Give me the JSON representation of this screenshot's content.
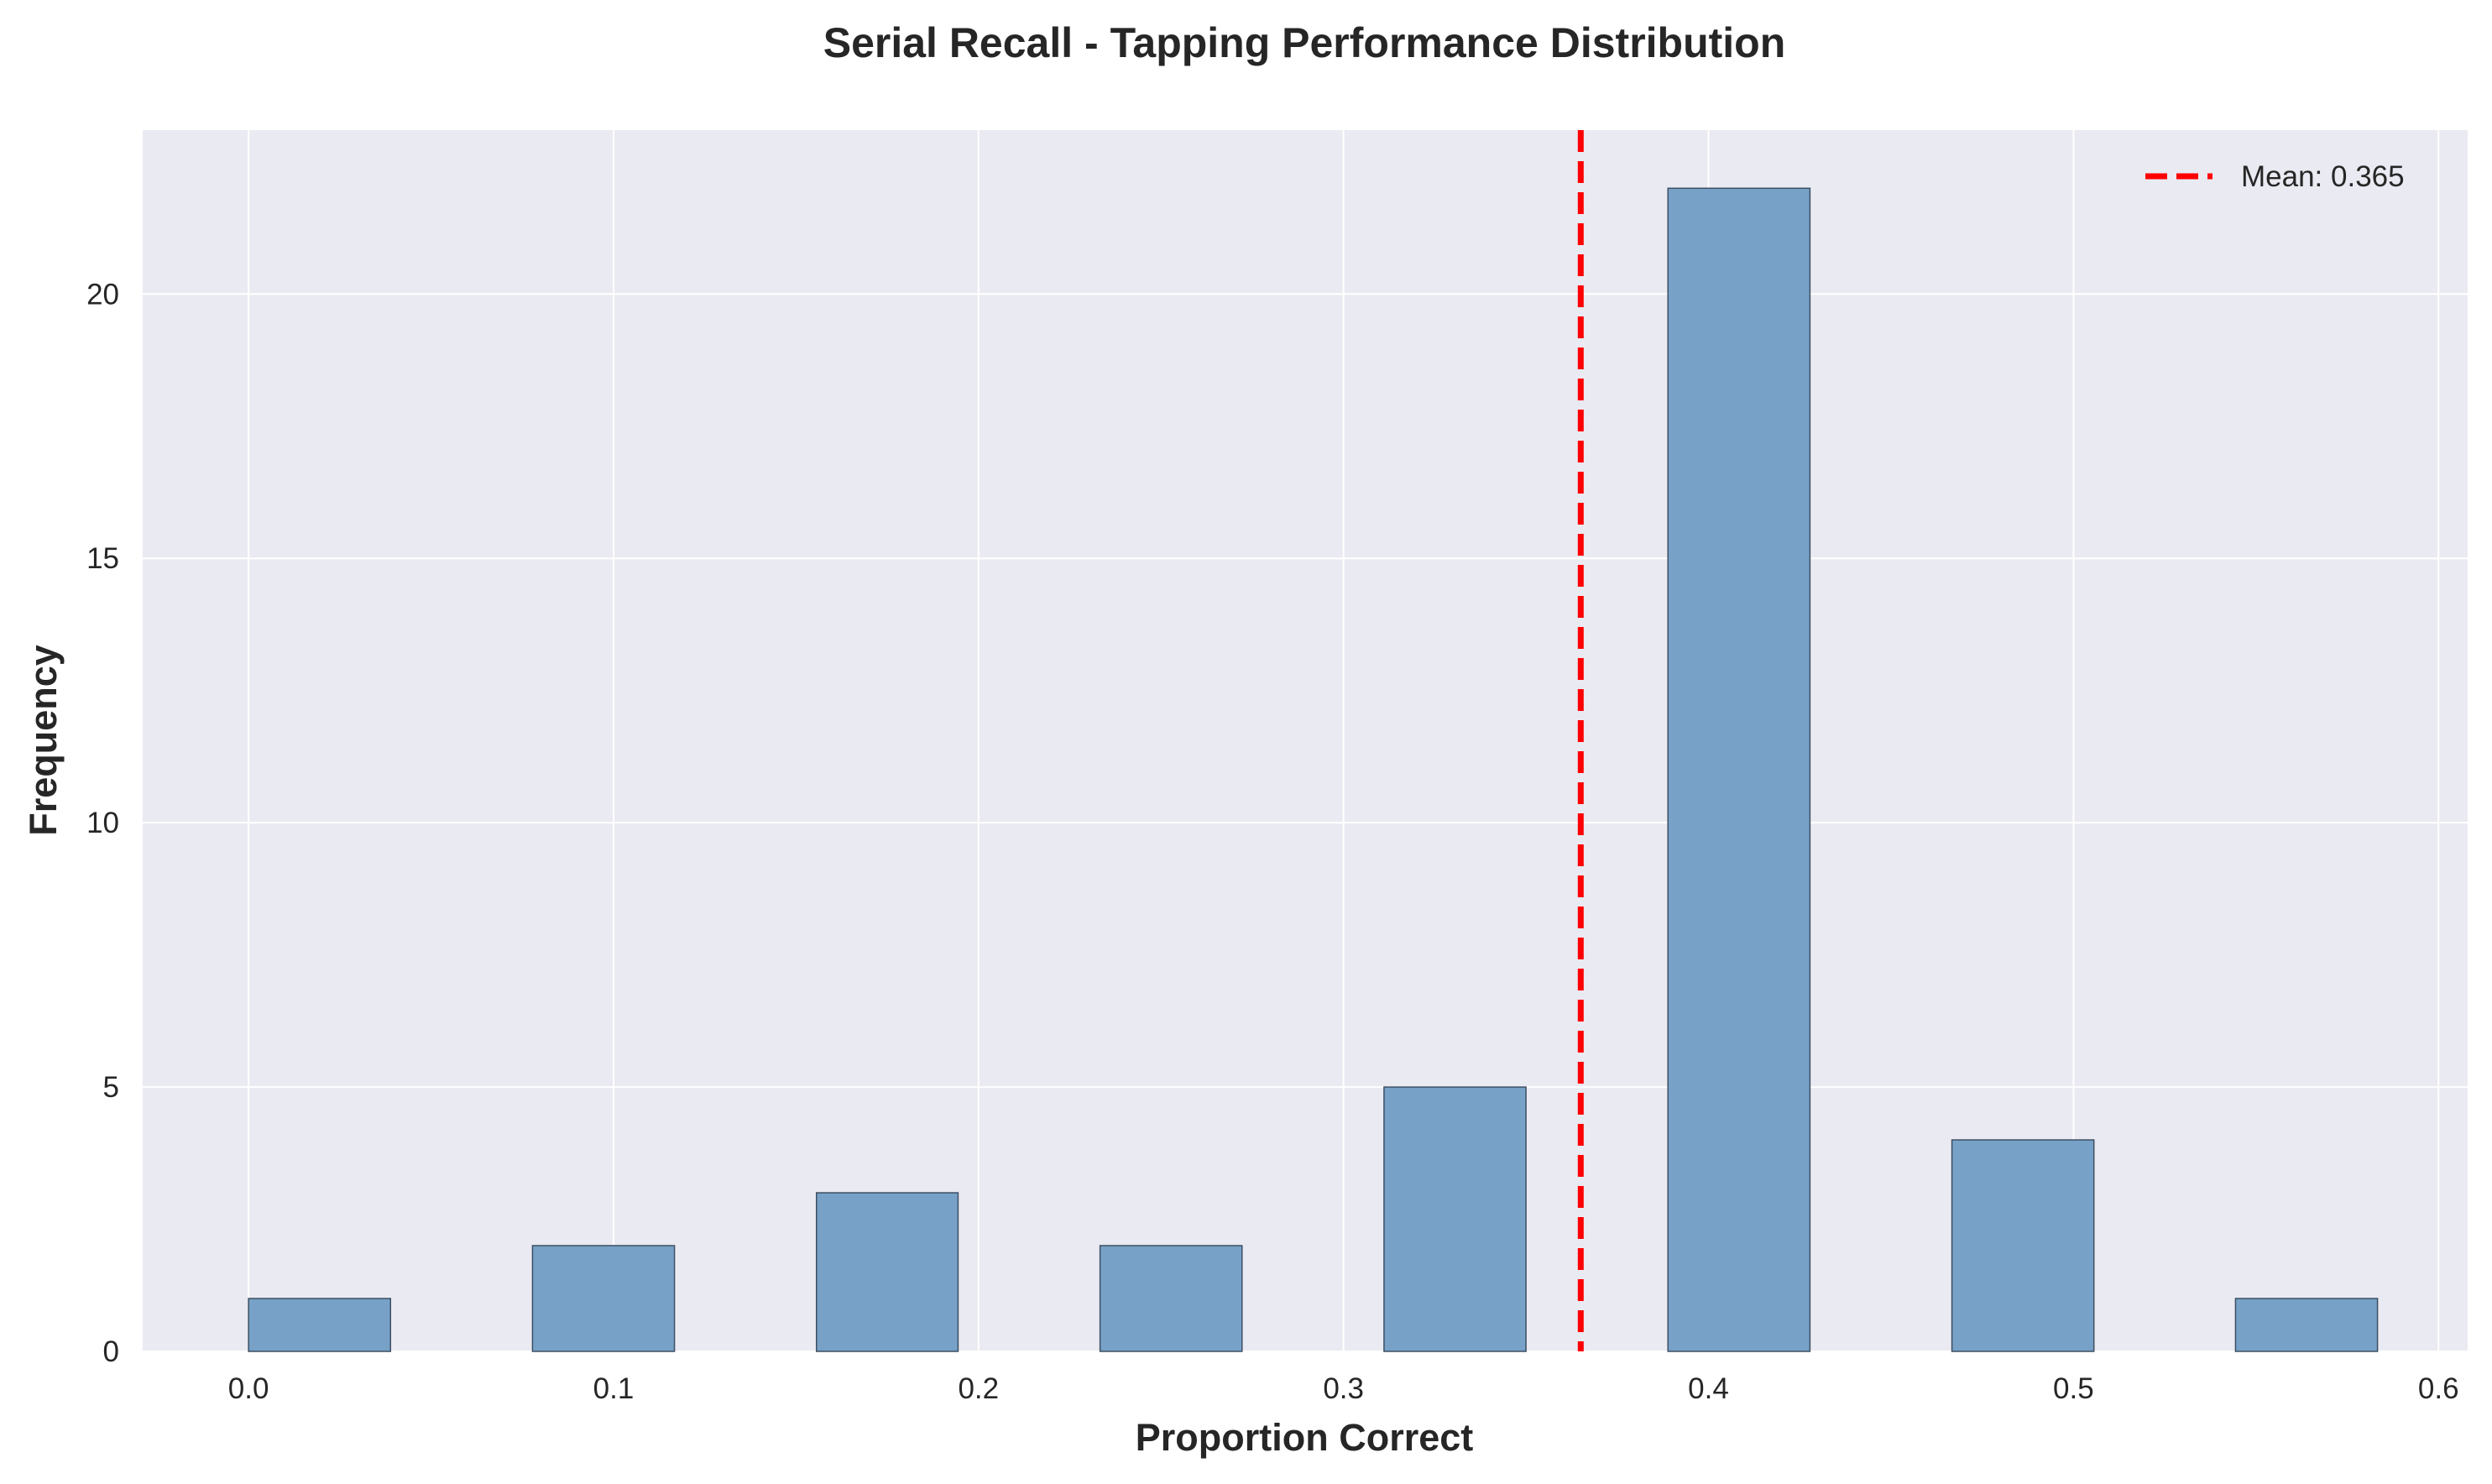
{
  "chart_data": {
    "type": "bar",
    "title": "Serial Recall - Tapping Performance Distribution",
    "xlabel": "Proportion Correct",
    "ylabel": "Frequency",
    "xlim": [
      -0.029,
      0.608
    ],
    "ylim": [
      0,
      23.1
    ],
    "xticks": [
      "0.0",
      "0.1",
      "0.2",
      "0.3",
      "0.4",
      "0.5",
      "0.6"
    ],
    "yticks": [
      "0",
      "5",
      "10",
      "15",
      "20"
    ],
    "bins": [
      {
        "start": 0.0,
        "end": 0.0389,
        "count": 1
      },
      {
        "start": 0.0778,
        "end": 0.1167,
        "count": 2
      },
      {
        "start": 0.1556,
        "end": 0.1944,
        "count": 3
      },
      {
        "start": 0.2333,
        "end": 0.2722,
        "count": 2
      },
      {
        "start": 0.3111,
        "end": 0.35,
        "count": 5
      },
      {
        "start": 0.3889,
        "end": 0.4278,
        "count": 22
      },
      {
        "start": 0.4667,
        "end": 0.5056,
        "count": 4
      },
      {
        "start": 0.5444,
        "end": 0.5833,
        "count": 1
      }
    ],
    "mean_line": {
      "value": 0.365,
      "label": "Mean: 0.365",
      "color": "#ff0000",
      "style": "dashed"
    },
    "bar_color": "#77a1c7",
    "bar_edge_color": "#3d4f63",
    "background": "#eaeaf2",
    "grid": true,
    "legend_position": "top-right"
  }
}
